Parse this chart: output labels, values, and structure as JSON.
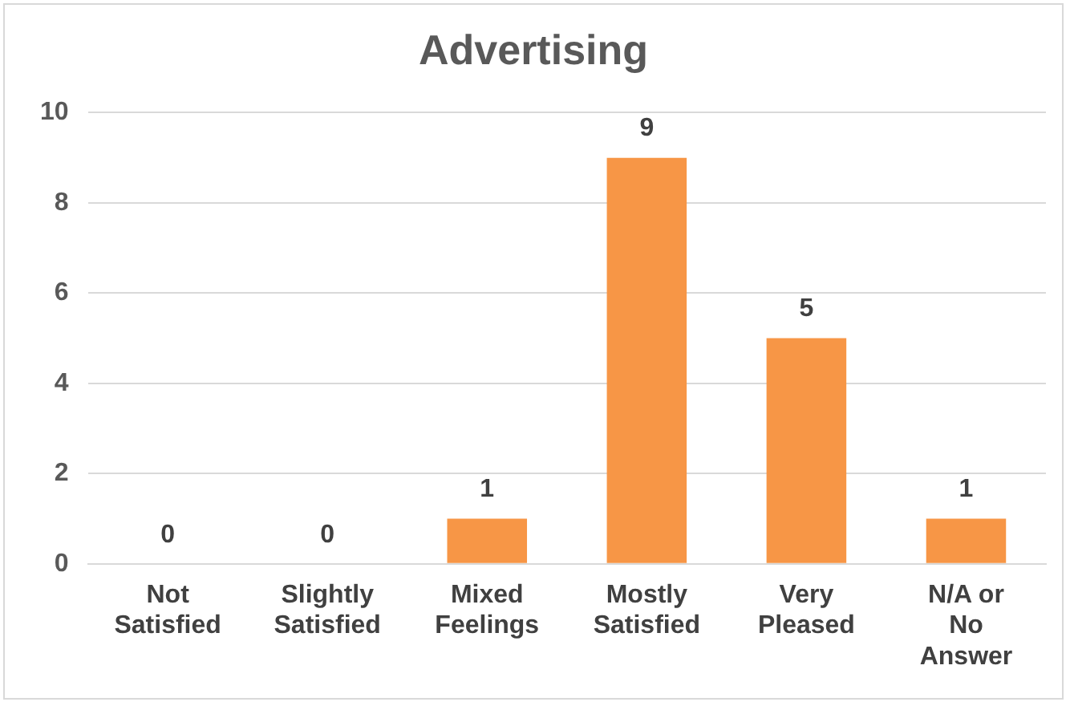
{
  "chart_data": {
    "type": "bar",
    "title": "Advertising",
    "categories": [
      "Not Satisfied",
      "Slightly Satisfied",
      "Mixed Feelings",
      "Mostly Satisfied",
      "Very Pleased",
      "N/A or No Answer"
    ],
    "values": [
      0,
      0,
      1,
      9,
      5,
      1
    ],
    "color": "#f79646",
    "ylim": [
      0,
      10
    ],
    "yticks": [
      0,
      2,
      4,
      6,
      8,
      10
    ],
    "grid": "y",
    "data_labels": true,
    "legend": false
  }
}
